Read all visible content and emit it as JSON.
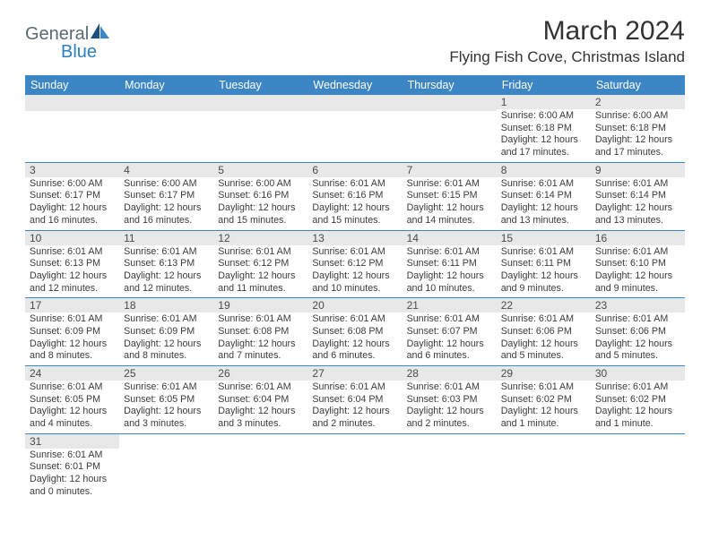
{
  "brand": {
    "name_part1": "General",
    "name_part2": "Blue"
  },
  "title": {
    "month": "March 2024",
    "location": "Flying Fish Cove, Christmas Island"
  },
  "colors": {
    "header_bg": "#3d86c6",
    "header_text": "#ffffff",
    "daynum_bg": "#e8e8e8",
    "border": "#3d86c6",
    "body_text": "#3b3b3b"
  },
  "weekdays": [
    "Sunday",
    "Monday",
    "Tuesday",
    "Wednesday",
    "Thursday",
    "Friday",
    "Saturday"
  ],
  "layout": {
    "first_weekday_index": 5,
    "days_in_month": 31
  },
  "days": {
    "1": {
      "sunrise": "6:00 AM",
      "sunset": "6:18 PM",
      "daylight": "12 hours and 17 minutes."
    },
    "2": {
      "sunrise": "6:00 AM",
      "sunset": "6:18 PM",
      "daylight": "12 hours and 17 minutes."
    },
    "3": {
      "sunrise": "6:00 AM",
      "sunset": "6:17 PM",
      "daylight": "12 hours and 16 minutes."
    },
    "4": {
      "sunrise": "6:00 AM",
      "sunset": "6:17 PM",
      "daylight": "12 hours and 16 minutes."
    },
    "5": {
      "sunrise": "6:00 AM",
      "sunset": "6:16 PM",
      "daylight": "12 hours and 15 minutes."
    },
    "6": {
      "sunrise": "6:01 AM",
      "sunset": "6:16 PM",
      "daylight": "12 hours and 15 minutes."
    },
    "7": {
      "sunrise": "6:01 AM",
      "sunset": "6:15 PM",
      "daylight": "12 hours and 14 minutes."
    },
    "8": {
      "sunrise": "6:01 AM",
      "sunset": "6:14 PM",
      "daylight": "12 hours and 13 minutes."
    },
    "9": {
      "sunrise": "6:01 AM",
      "sunset": "6:14 PM",
      "daylight": "12 hours and 13 minutes."
    },
    "10": {
      "sunrise": "6:01 AM",
      "sunset": "6:13 PM",
      "daylight": "12 hours and 12 minutes."
    },
    "11": {
      "sunrise": "6:01 AM",
      "sunset": "6:13 PM",
      "daylight": "12 hours and 12 minutes."
    },
    "12": {
      "sunrise": "6:01 AM",
      "sunset": "6:12 PM",
      "daylight": "12 hours and 11 minutes."
    },
    "13": {
      "sunrise": "6:01 AM",
      "sunset": "6:12 PM",
      "daylight": "12 hours and 10 minutes."
    },
    "14": {
      "sunrise": "6:01 AM",
      "sunset": "6:11 PM",
      "daylight": "12 hours and 10 minutes."
    },
    "15": {
      "sunrise": "6:01 AM",
      "sunset": "6:11 PM",
      "daylight": "12 hours and 9 minutes."
    },
    "16": {
      "sunrise": "6:01 AM",
      "sunset": "6:10 PM",
      "daylight": "12 hours and 9 minutes."
    },
    "17": {
      "sunrise": "6:01 AM",
      "sunset": "6:09 PM",
      "daylight": "12 hours and 8 minutes."
    },
    "18": {
      "sunrise": "6:01 AM",
      "sunset": "6:09 PM",
      "daylight": "12 hours and 8 minutes."
    },
    "19": {
      "sunrise": "6:01 AM",
      "sunset": "6:08 PM",
      "daylight": "12 hours and 7 minutes."
    },
    "20": {
      "sunrise": "6:01 AM",
      "sunset": "6:08 PM",
      "daylight": "12 hours and 6 minutes."
    },
    "21": {
      "sunrise": "6:01 AM",
      "sunset": "6:07 PM",
      "daylight": "12 hours and 6 minutes."
    },
    "22": {
      "sunrise": "6:01 AM",
      "sunset": "6:06 PM",
      "daylight": "12 hours and 5 minutes."
    },
    "23": {
      "sunrise": "6:01 AM",
      "sunset": "6:06 PM",
      "daylight": "12 hours and 5 minutes."
    },
    "24": {
      "sunrise": "6:01 AM",
      "sunset": "6:05 PM",
      "daylight": "12 hours and 4 minutes."
    },
    "25": {
      "sunrise": "6:01 AM",
      "sunset": "6:05 PM",
      "daylight": "12 hours and 3 minutes."
    },
    "26": {
      "sunrise": "6:01 AM",
      "sunset": "6:04 PM",
      "daylight": "12 hours and 3 minutes."
    },
    "27": {
      "sunrise": "6:01 AM",
      "sunset": "6:04 PM",
      "daylight": "12 hours and 2 minutes."
    },
    "28": {
      "sunrise": "6:01 AM",
      "sunset": "6:03 PM",
      "daylight": "12 hours and 2 minutes."
    },
    "29": {
      "sunrise": "6:01 AM",
      "sunset": "6:02 PM",
      "daylight": "12 hours and 1 minute."
    },
    "30": {
      "sunrise": "6:01 AM",
      "sunset": "6:02 PM",
      "daylight": "12 hours and 1 minute."
    },
    "31": {
      "sunrise": "6:01 AM",
      "sunset": "6:01 PM",
      "daylight": "12 hours and 0 minutes."
    }
  },
  "labels": {
    "sunrise": "Sunrise:",
    "sunset": "Sunset:",
    "daylight": "Daylight:"
  }
}
